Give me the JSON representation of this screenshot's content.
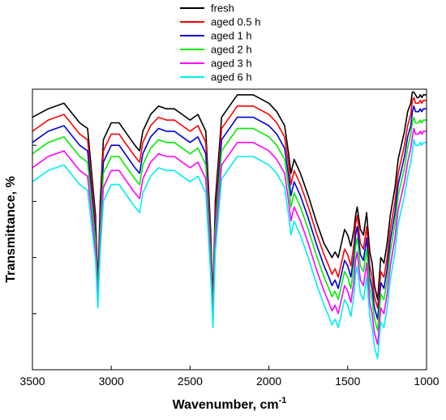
{
  "chart_data": {
    "type": "line",
    "title": "",
    "xlabel": "Wavenumber, cm",
    "xlabel_superscript": "-1",
    "ylabel": "Transmittance, %",
    "xlim": [
      3500,
      1000
    ],
    "x_reversed": true,
    "ylim": [
      0,
      100
    ],
    "y_tick_labels_shown": false,
    "grid": false,
    "legend_position": "top-center",
    "x_ticks": [
      3500,
      3000,
      2500,
      2000,
      1500,
      1000
    ],
    "x_tick_labels": [
      "3500",
      "3000",
      "2500",
      "2000",
      "1500",
      "1000"
    ],
    "y_tick_values": [
      20,
      40,
      60,
      80
    ],
    "x": [
      3500,
      3400,
      3300,
      3200,
      3150,
      3100,
      3085,
      3070,
      3050,
      3000,
      2950,
      2900,
      2850,
      2820,
      2800,
      2750,
      2700,
      2650,
      2600,
      2550,
      2500,
      2450,
      2400,
      2370,
      2355,
      2340,
      2300,
      2200,
      2100,
      2000,
      1950,
      1900,
      1875,
      1860,
      1840,
      1800,
      1750,
      1700,
      1650,
      1620,
      1600,
      1580,
      1560,
      1540,
      1520,
      1500,
      1480,
      1460,
      1450,
      1440,
      1420,
      1400,
      1380,
      1360,
      1345,
      1330,
      1310,
      1290,
      1270,
      1250,
      1230,
      1200,
      1180,
      1160,
      1140,
      1120,
      1100,
      1090,
      1080,
      1070,
      1060,
      1050,
      1040,
      1030,
      1020,
      1000
    ],
    "series": [
      {
        "name": "fresh",
        "color": "#000000",
        "values": [
          90,
          93,
          95,
          88,
          86,
          55,
          30,
          60,
          82,
          88,
          88,
          84,
          80,
          78,
          85,
          91,
          94,
          93,
          93,
          91,
          89,
          91,
          85,
          50,
          24,
          60,
          90,
          98,
          98,
          95,
          92,
          87,
          77,
          70,
          75,
          70,
          62,
          53,
          45,
          42,
          40,
          42,
          40,
          45,
          50,
          48,
          44,
          50,
          55,
          58,
          50,
          48,
          56,
          42,
          38,
          30,
          25,
          40,
          38,
          45,
          55,
          65,
          75,
          80,
          85,
          92,
          95,
          99,
          99,
          98,
          97,
          97,
          98,
          97,
          98,
          98
        ]
      },
      {
        "name": "aged 0.5 h",
        "color": "#ff0000",
        "values": [
          85,
          89,
          91,
          84,
          82,
          52,
          28,
          56,
          78,
          84,
          84,
          80,
          76,
          74,
          81,
          87,
          90,
          89,
          89,
          87,
          85,
          87,
          81,
          47,
          22,
          56,
          86,
          94,
          94,
          91,
          88,
          83,
          73,
          66,
          71,
          66,
          58,
          49,
          41,
          37,
          34,
          36,
          33,
          38,
          43,
          41,
          37,
          45,
          52,
          55,
          45,
          43,
          51,
          37,
          33,
          26,
          22,
          35,
          33,
          40,
          50,
          60,
          70,
          75,
          80,
          87,
          91,
          96,
          97,
          95,
          95,
          95,
          96,
          95,
          96,
          96
        ]
      },
      {
        "name": "aged 1 h",
        "color": "#0000dd",
        "values": [
          81,
          85,
          87,
          80,
          78,
          49,
          27,
          53,
          74,
          80,
          80,
          76,
          72,
          70,
          77,
          83,
          86,
          85,
          85,
          83,
          81,
          83,
          77,
          44,
          20,
          53,
          82,
          90,
          90,
          87,
          84,
          79,
          69,
          62,
          67,
          62,
          54,
          45,
          37,
          33,
          30,
          32,
          29,
          34,
          39,
          37,
          33,
          41,
          48,
          51,
          41,
          39,
          47,
          33,
          29,
          22,
          18,
          31,
          29,
          36,
          46,
          56,
          66,
          71,
          76,
          83,
          87,
          92,
          94,
          92,
          92,
          92,
          93,
          92,
          93,
          93
        ]
      },
      {
        "name": "aged 2 h",
        "color": "#00ee00",
        "values": [
          77,
          81,
          83,
          76,
          74,
          46,
          26,
          50,
          70,
          76,
          76,
          72,
          68,
          66,
          73,
          79,
          82,
          81,
          81,
          79,
          77,
          79,
          73,
          41,
          19,
          50,
          78,
          86,
          86,
          83,
          80,
          75,
          65,
          58,
          63,
          58,
          50,
          41,
          33,
          29,
          26,
          28,
          25,
          30,
          35,
          33,
          29,
          37,
          44,
          47,
          37,
          35,
          43,
          29,
          25,
          18,
          14,
          27,
          25,
          32,
          42,
          52,
          62,
          67,
          72,
          79,
          84,
          88,
          90,
          88,
          88,
          88,
          89,
          88,
          89,
          89
        ]
      },
      {
        "name": "aged 3 h",
        "color": "#ff00ff",
        "values": [
          72,
          76,
          78,
          71,
          69,
          42,
          24,
          46,
          65,
          71,
          71,
          67,
          63,
          61,
          68,
          74,
          77,
          76,
          76,
          74,
          72,
          74,
          68,
          37,
          17,
          46,
          73,
          81,
          81,
          78,
          75,
          70,
          60,
          53,
          58,
          53,
          45,
          36,
          28,
          24,
          21,
          23,
          20,
          25,
          30,
          28,
          24,
          32,
          39,
          42,
          32,
          30,
          38,
          24,
          20,
          13,
          9,
          22,
          20,
          27,
          37,
          47,
          57,
          62,
          67,
          74,
          79,
          83,
          86,
          84,
          84,
          84,
          85,
          84,
          85,
          85
        ]
      },
      {
        "name": "aged 6 h",
        "color": "#00eeee",
        "values": [
          67,
          71,
          73,
          66,
          64,
          39,
          22,
          42,
          60,
          66,
          66,
          62,
          58,
          56,
          63,
          69,
          72,
          71,
          71,
          69,
          67,
          69,
          63,
          34,
          15,
          42,
          68,
          76,
          76,
          73,
          70,
          65,
          55,
          48,
          53,
          48,
          40,
          31,
          23,
          19,
          16,
          18,
          15,
          20,
          25,
          23,
          19,
          27,
          34,
          37,
          27,
          25,
          33,
          19,
          15,
          8,
          4,
          17,
          15,
          22,
          32,
          42,
          52,
          57,
          62,
          69,
          74,
          78,
          82,
          80,
          80,
          80,
          81,
          80,
          81,
          81
        ]
      }
    ]
  }
}
